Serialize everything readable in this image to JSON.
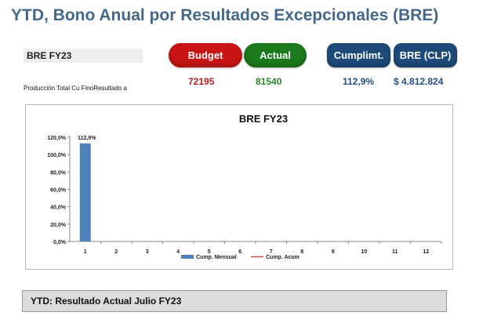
{
  "page": {
    "title": "YTD, Bono Anual por Resultados Excepcionales (BRE)",
    "label": "BRE FY23",
    "metric_label": "Producción Total Cu FinoResultado a",
    "footer": "YTD: Resultado Actual  Julio  FY23"
  },
  "buttons": {
    "budget": "Budget",
    "actual": "Actual",
    "cumpl": "Cumplimt.",
    "bre": "BRE (CLP)"
  },
  "values": {
    "budget": "72195",
    "actual": "81540",
    "cumpl": "112,9%",
    "bre": "$ 4.812.824"
  },
  "colors": {
    "budget": "#c81414",
    "actual": "#1b7a1b",
    "blue": "#1e4a7a",
    "bar": "#4f81bd",
    "line": "#c0504d"
  },
  "chart_data": {
    "type": "bar",
    "title": "BRE FY23",
    "categories": [
      "1",
      "2",
      "3",
      "4",
      "5",
      "6",
      "7",
      "8",
      "9",
      "10",
      "11",
      "12"
    ],
    "series": [
      {
        "name": "Cump. Mensual",
        "type": "bar",
        "values": [
          112.9,
          null,
          null,
          null,
          null,
          null,
          null,
          null,
          null,
          null,
          null,
          null
        ]
      },
      {
        "name": "Cump. Acum",
        "type": "line",
        "values": [
          null,
          null,
          null,
          null,
          null,
          null,
          null,
          null,
          null,
          null,
          null,
          null
        ]
      }
    ],
    "data_labels": [
      "112,9%"
    ],
    "ylim": [
      0,
      120
    ],
    "yticks": [
      "0,0%",
      "20,0%",
      "40,0%",
      "60,0%",
      "80,0%",
      "100,0%",
      "120,0%"
    ],
    "legend": "bottom",
    "grid": false
  }
}
